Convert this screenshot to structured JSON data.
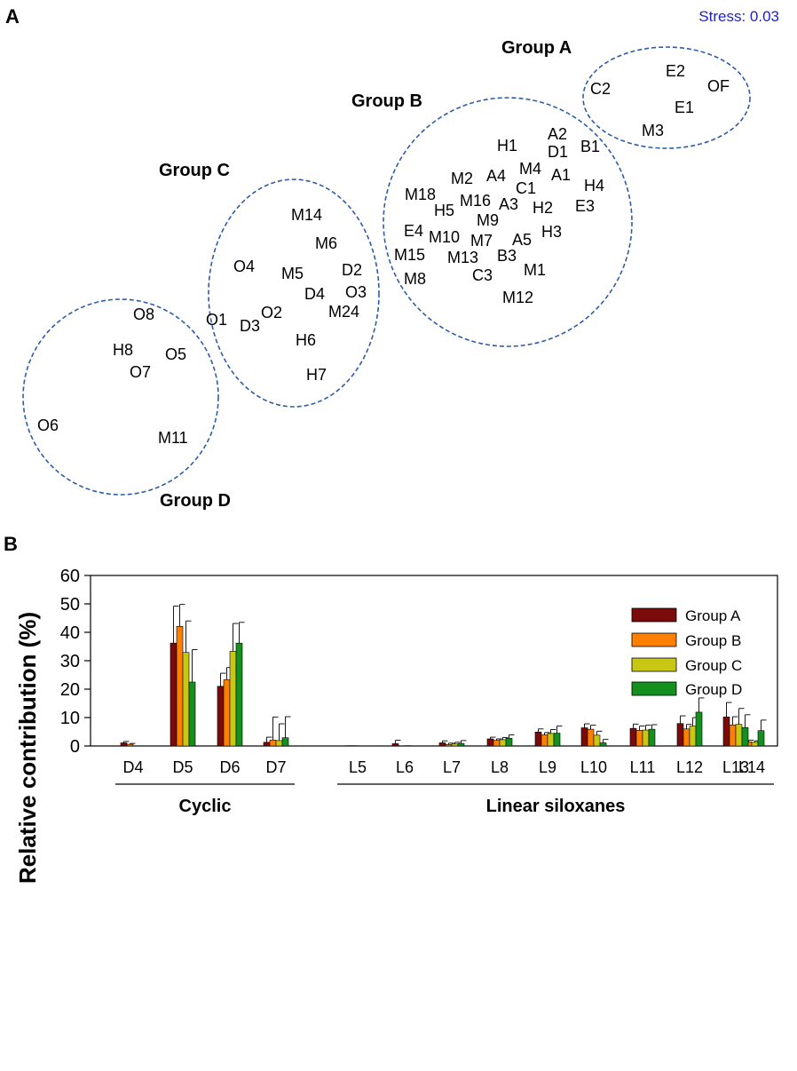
{
  "colors": {
    "ellipse": "#2e5ca8",
    "stress": "#2020d0",
    "groupA": "#7b0a0a",
    "groupB": "#ff7f00",
    "groupC": "#c8c814",
    "groupD": "#14901e",
    "text": "#000000"
  },
  "panelA": {
    "label": "A",
    "stress": "Stress: 0.03",
    "groups": [
      {
        "name": "Group A",
        "members": [
          "C2",
          "E2",
          "OF",
          "E1",
          "M3"
        ]
      },
      {
        "name": "Group B",
        "members": [
          "H1",
          "A2",
          "D1",
          "B1",
          "M4",
          "A1",
          "M2",
          "A4",
          "C1",
          "H4",
          "M18",
          "M16",
          "A3",
          "H2",
          "E3",
          "H5",
          "M9",
          "E4",
          "M10",
          "M7",
          "A5",
          "H3",
          "M15",
          "M13",
          "B3",
          "M8",
          "C3",
          "M1",
          "M12"
        ]
      },
      {
        "name": "Group C",
        "members": [
          "M14",
          "M6",
          "O4",
          "M5",
          "D2",
          "D4",
          "O3",
          "O2",
          "M24",
          "O1",
          "D3",
          "H6",
          "H7"
        ]
      },
      {
        "name": "Group D",
        "members": [
          "O8",
          "H8",
          "O5",
          "O7",
          "O6",
          "M11"
        ]
      }
    ]
  },
  "panelB": {
    "label": "B",
    "chart_data": {
      "type": "bar",
      "ylabel": "Relative contribution (%)",
      "ylim": [
        0,
        60
      ],
      "yticks": [
        "0",
        "10",
        "20",
        "30",
        "40",
        "50",
        "60"
      ],
      "legend_position": "top-right",
      "categories": [
        "D4",
        "D5",
        "D6",
        "D7",
        "L5",
        "L6",
        "L7",
        "L8",
        "L9",
        "L10",
        "L11",
        "L12",
        "L13",
        "L14"
      ],
      "category_groups": [
        {
          "label": "Cyclic",
          "members": [
            "D4",
            "D5",
            "D6",
            "D7"
          ]
        },
        {
          "label": "Linear siloxanes",
          "members": [
            "L5",
            "L6",
            "L7",
            "L8",
            "L9",
            "L10",
            "L11",
            "L12",
            "L13",
            "L14"
          ]
        }
      ],
      "series": [
        {
          "name": "Group A",
          "values": [
            1.1,
            36.2,
            21.0,
            1.3,
            0.1,
            0.8,
            1.1,
            2.5,
            4.9,
            6.4,
            6.2,
            7.9,
            10.2,
            0.8
          ],
          "errors": [
            0.5,
            13.0,
            4.6,
            1.8,
            0.0,
            1.2,
            0.7,
            0.6,
            1.1,
            1.4,
            1.5,
            2.7,
            5.1,
            1.0
          ]
        },
        {
          "name": "Group B",
          "values": [
            0.6,
            42.1,
            23.3,
            2.1,
            0.1,
            0.0,
            0.5,
            2.0,
            3.9,
            5.9,
            5.5,
            6.0,
            7.4,
            1.4
          ],
          "errors": [
            0.3,
            7.7,
            4.3,
            8.1,
            0.0,
            0.0,
            0.5,
            0.5,
            0.8,
            1.4,
            1.5,
            1.6,
            2.9,
            0.6
          ]
        },
        {
          "name": "Group C",
          "values": [
            0.0,
            32.9,
            33.3,
            1.9,
            0.0,
            0.1,
            0.7,
            2.2,
            4.4,
            3.8,
            5.6,
            7.0,
            7.6,
            1.3
          ],
          "errors": [
            0.0,
            11.1,
            9.8,
            5.9,
            0.0,
            0.0,
            0.6,
            0.8,
            1.4,
            1.4,
            1.7,
            3.0,
            5.6,
            0.5
          ]
        },
        {
          "name": "Group D",
          "values": [
            0.0,
            22.5,
            36.2,
            2.9,
            0.0,
            0.0,
            0.9,
            2.7,
            4.5,
            1.1,
            5.9,
            11.9,
            6.5,
            5.4
          ],
          "errors": [
            0.0,
            11.4,
            7.3,
            7.4,
            0.0,
            0.0,
            1.0,
            1.2,
            2.5,
            1.2,
            1.6,
            5.0,
            4.5,
            3.7
          ]
        }
      ]
    }
  }
}
